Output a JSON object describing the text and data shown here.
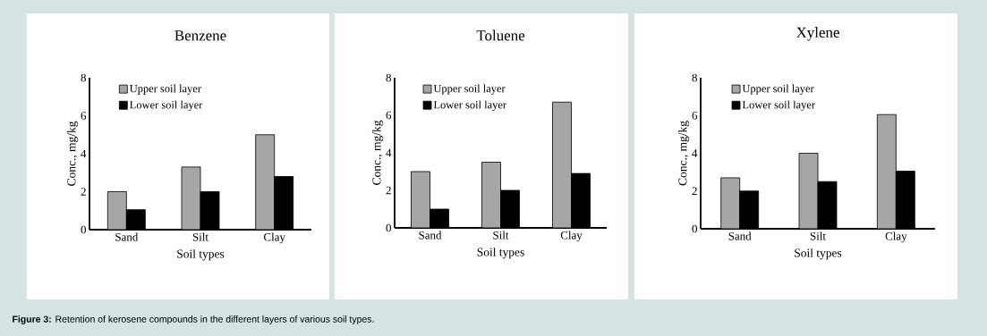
{
  "chart_data": [
    {
      "type": "bar",
      "title": "Benzene",
      "xlabel": "Soil types",
      "ylabel": "Conc., mg/kg",
      "categories": [
        "Sand",
        "Silt",
        "Clay"
      ],
      "ylim": [
        0,
        8
      ],
      "yticks": [
        0,
        2,
        4,
        6,
        8
      ],
      "legend": "top left",
      "series": [
        {
          "name": "Upper soil layer",
          "color": "#a6a6a6",
          "values": [
            2.0,
            3.3,
            5.0
          ]
        },
        {
          "name": "Lower soil layer",
          "color": "#000000",
          "values": [
            1.05,
            2.0,
            2.8
          ]
        }
      ],
      "annotations": [
        "**Figure 3:** Retention of kerosene compounds in the different layers of various soil types."
      ]
    },
    {
      "type": "bar",
      "title": "Toluene",
      "xlabel": "Soil types",
      "ylabel": "Conc., mg/kg",
      "categories": [
        "Sand",
        "Silt",
        "Clay"
      ],
      "ylim": [
        0,
        8
      ],
      "yticks": [
        0,
        2,
        4,
        6,
        8
      ],
      "legend": "top left",
      "series": [
        {
          "name": "Upper soil layer",
          "color": "#a6a6a6",
          "values": [
            3.0,
            3.5,
            6.7
          ]
        },
        {
          "name": "Lower soil layer",
          "color": "#000000",
          "values": [
            1.0,
            2.0,
            2.9
          ]
        }
      ]
    },
    {
      "type": "bar",
      "title": "Xylene",
      "xlabel": "Soil types",
      "ylabel": "Conc., mg/kg",
      "categories": [
        "Sand",
        "Silt",
        "Clay"
      ],
      "ylim": [
        0,
        8
      ],
      "yticks": [
        0,
        2,
        4,
        6,
        8
      ],
      "legend": "top left",
      "series": [
        {
          "name": "Upper soil layer",
          "color": "#a6a6a6",
          "values": [
            2.7,
            4.0,
            6.05
          ]
        },
        {
          "name": "Lower soil layer",
          "color": "#000000",
          "values": [
            2.0,
            2.5,
            3.05
          ]
        }
      ]
    }
  ]
}
